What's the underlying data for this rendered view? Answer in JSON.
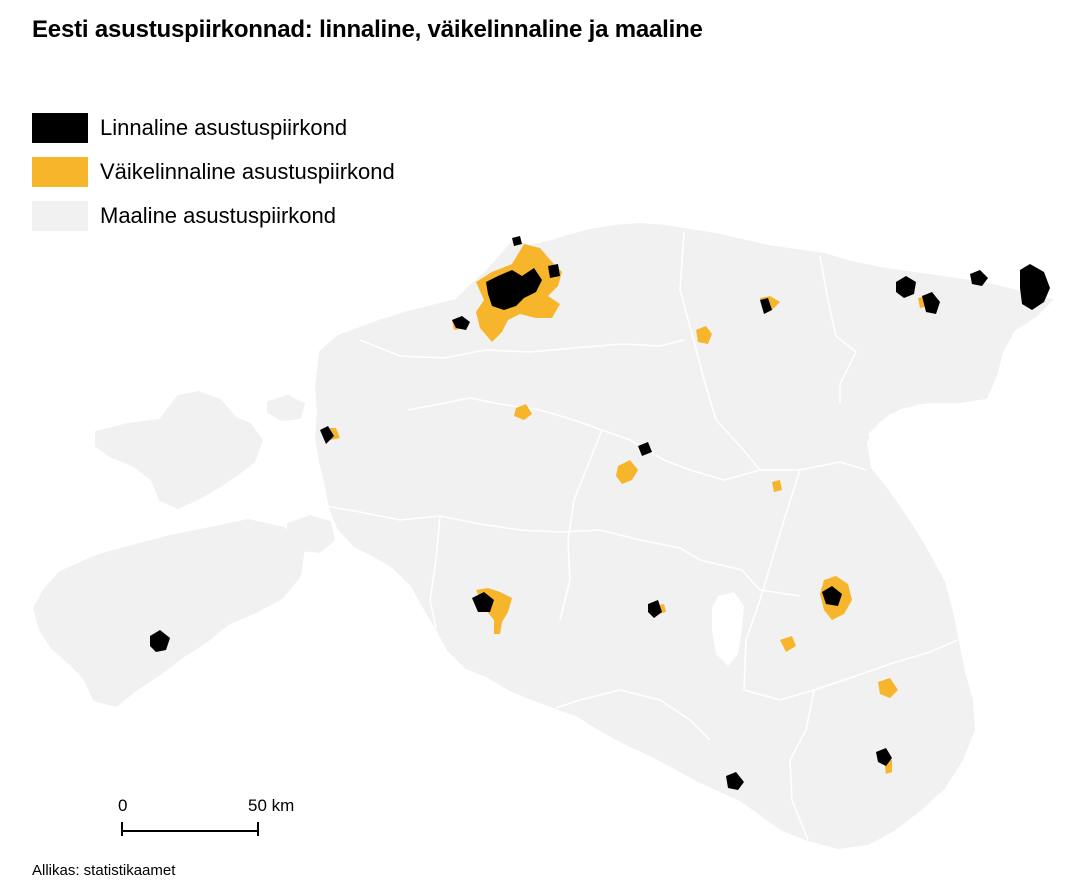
{
  "title": "Eesti asustuspiirkonnad: linnaline, väikelinnaline ja maaline",
  "legend": [
    {
      "label": "Linnaline asustuspiirkond",
      "color": "#000000"
    },
    {
      "label": "Väikelinnaline asustuspiirkond",
      "color": "#F7B52C"
    },
    {
      "label": "Maaline asustuspiirkond",
      "color": "#F1F1F1"
    }
  ],
  "scale": {
    "start_label": "0",
    "end_label": "50 km"
  },
  "source": "Allikas: statistikaamet",
  "colors": {
    "urban": "#000000",
    "small_urban": "#F7B52C",
    "rural": "#F1F1F1",
    "border": "#FFFFFF"
  }
}
